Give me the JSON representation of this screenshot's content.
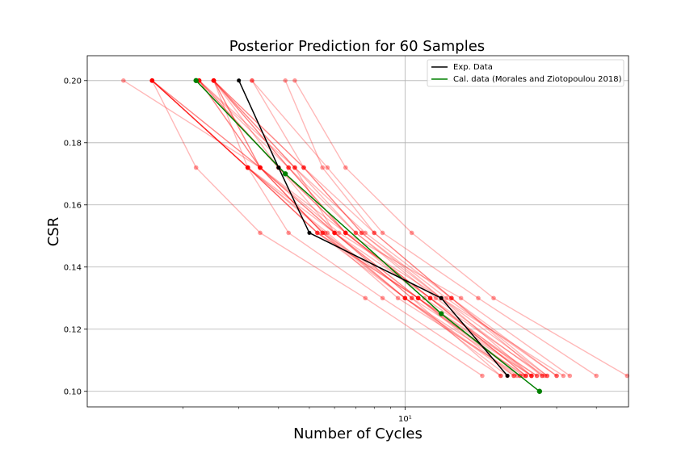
{
  "chart_data": {
    "type": "line",
    "title": "Posterior Prediction for 60 Samples",
    "xlabel": "Number of Cycles",
    "ylabel": "CSR",
    "xscale": "log",
    "xlim": [
      1.0,
      50.5
    ],
    "ylim": [
      0.095,
      0.208
    ],
    "yticks": [
      0.1,
      0.12,
      0.14,
      0.16,
      0.18,
      0.2
    ],
    "ytick_labels": [
      "0.10",
      "0.12",
      "0.14",
      "0.16",
      "0.18",
      "0.20"
    ],
    "xtick_label": "10¹",
    "grid": true,
    "legend_position": "top-right",
    "series": [
      {
        "name": "Exp. Data",
        "color": "#000000",
        "points": [
          [
            3.0,
            0.2
          ],
          [
            4.0,
            0.172
          ],
          [
            5.0,
            0.151
          ],
          [
            13.0,
            0.13
          ],
          [
            21.0,
            0.105
          ]
        ]
      },
      {
        "name": "Cal. data (Morales and Ziotopoulou 2018)",
        "color": "#008000",
        "points": [
          [
            2.2,
            0.2
          ],
          [
            4.2,
            0.17
          ],
          [
            13.0,
            0.125
          ],
          [
            26.5,
            0.1
          ]
        ]
      }
    ],
    "posterior_color": "#ff0000",
    "posterior_csr": [
      0.2,
      0.172,
      0.151,
      0.13,
      0.105
    ],
    "posterior_samples": [
      [
        1.3,
        3.5,
        6.5,
        15.0,
        33.0
      ],
      [
        1.6,
        3.2,
        5.3,
        11.0,
        23.0
      ],
      [
        1.6,
        3.5,
        6.0,
        12.0,
        25.0
      ],
      [
        2.25,
        4.5,
        7.5,
        14.0,
        27.0
      ],
      [
        2.5,
        4.8,
        8.0,
        14.0,
        28.0
      ],
      [
        2.5,
        4.0,
        6.5,
        12.0,
        24.0
      ],
      [
        2.5,
        3.5,
        6.2,
        13.0,
        25.0
      ],
      [
        4.2,
        5.5,
        8.0,
        14.0,
        30.0
      ],
      [
        3.3,
        5.7,
        8.5,
        17.0,
        40.0
      ],
      [
        4.5,
        6.5,
        10.5,
        19.0,
        50.0
      ],
      [
        1.6,
        2.2,
        3.5,
        7.5,
        17.5
      ],
      [
        2.5,
        3.2,
        4.3,
        8.5,
        20.0
      ],
      [
        1.6,
        3.2,
        5.6,
        10.0,
        22.0
      ],
      [
        2.25,
        4.0,
        6.0,
        10.5,
        25.0
      ],
      [
        2.5,
        4.5,
        7.0,
        12.5,
        27.0
      ],
      [
        2.5,
        4.3,
        6.5,
        11.5,
        26.0
      ],
      [
        1.6,
        3.2,
        5.7,
        10.0,
        24.0
      ],
      [
        2.25,
        3.5,
        5.5,
        9.5,
        23.0
      ],
      [
        1.6,
        3.2,
        5.3,
        11.0,
        25.0
      ],
      [
        2.5,
        4.8,
        7.3,
        13.5,
        30.0
      ],
      [
        1.6,
        3.5,
        5.5,
        11.0,
        22.0
      ],
      [
        2.25,
        3.5,
        6.0,
        11.0,
        26.0
      ],
      [
        2.5,
        4.3,
        6.5,
        12.0,
        24.0
      ],
      [
        1.6,
        3.2,
        5.3,
        10.0,
        21.0
      ],
      [
        2.25,
        4.3,
        7.0,
        13.0,
        28.0
      ],
      [
        2.5,
        4.5,
        6.0,
        11.0,
        23.5
      ],
      [
        1.6,
        3.2,
        6.0,
        10.5,
        20.0
      ],
      [
        3.3,
        4.8,
        7.3,
        13.0,
        31.5
      ],
      [
        2.25,
        4.0,
        6.5,
        12.0,
        27.5
      ],
      [
        2.5,
        3.5,
        5.5,
        10.0,
        22.5
      ]
    ]
  }
}
